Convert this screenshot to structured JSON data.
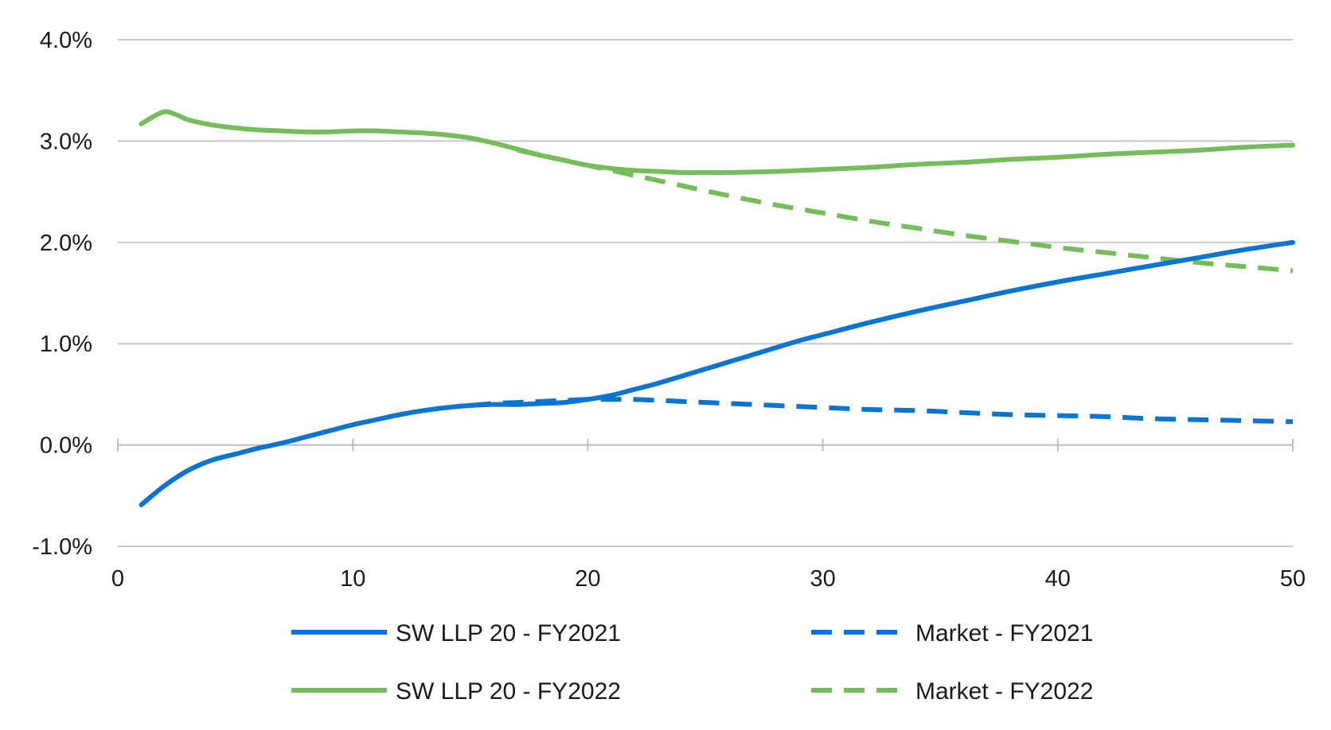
{
  "chart_data": {
    "type": "line",
    "title": "",
    "xlabel": "",
    "ylabel": "",
    "xlim": [
      0,
      50
    ],
    "ylim": [
      -1.0,
      4.0
    ],
    "x_ticks": [
      0,
      10,
      20,
      30,
      40,
      50
    ],
    "x_tick_labels": [
      "0",
      "10",
      "20",
      "30",
      "40",
      "50"
    ],
    "y_ticks": [
      -1.0,
      0.0,
      1.0,
      2.0,
      3.0,
      4.0
    ],
    "y_tick_labels": [
      "-1.0%",
      "0.0%",
      "1.0%",
      "2.0%",
      "3.0%",
      "4.0%"
    ],
    "grid": "horizontal",
    "legend_position": "bottom",
    "colors": {
      "blue": "#0a74d4",
      "green": "#75bd5a",
      "grid": "#c8c8c8",
      "axis": "#bfbfbf"
    },
    "series": [
      {
        "name": "SW LLP 20 - FY2021",
        "color": "#0a74d4",
        "dash": "solid",
        "x": [
          1,
          2,
          3,
          4,
          5,
          6,
          7,
          8,
          9,
          10,
          11,
          12,
          13,
          14,
          15,
          16,
          17,
          18,
          19,
          20,
          21,
          22,
          23,
          24,
          25,
          26,
          27,
          28,
          29,
          30,
          32,
          34,
          36,
          38,
          40,
          42,
          44,
          46,
          48,
          50
        ],
        "y": [
          -0.59,
          -0.4,
          -0.25,
          -0.15,
          -0.09,
          -0.03,
          0.02,
          0.08,
          0.14,
          0.2,
          0.25,
          0.3,
          0.34,
          0.37,
          0.39,
          0.4,
          0.4,
          0.41,
          0.42,
          0.45,
          0.49,
          0.55,
          0.61,
          0.68,
          0.75,
          0.82,
          0.89,
          0.96,
          1.03,
          1.09,
          1.21,
          1.32,
          1.42,
          1.52,
          1.61,
          1.69,
          1.77,
          1.85,
          1.93,
          2.0
        ]
      },
      {
        "name": "Market - FY2021",
        "color": "#0a74d4",
        "dash": "dashed",
        "x": [
          15,
          16,
          17,
          18,
          19,
          20,
          21,
          22,
          24,
          26,
          28,
          30,
          32,
          34,
          36,
          38,
          40,
          42,
          44,
          46,
          48,
          50
        ],
        "y": [
          0.39,
          0.41,
          0.42,
          0.43,
          0.44,
          0.45,
          0.45,
          0.45,
          0.43,
          0.41,
          0.39,
          0.37,
          0.35,
          0.34,
          0.32,
          0.3,
          0.29,
          0.28,
          0.26,
          0.25,
          0.24,
          0.23
        ]
      },
      {
        "name": "SW LLP 20 - FY2022",
        "color": "#75bd5a",
        "dash": "solid",
        "x": [
          1,
          1.5,
          2,
          2.5,
          3,
          4,
          5,
          6,
          7,
          8,
          9,
          10,
          11,
          12,
          13,
          14,
          15,
          16,
          17,
          18,
          19,
          20,
          21,
          22,
          23,
          24,
          25,
          26,
          28,
          30,
          32,
          34,
          36,
          38,
          40,
          42,
          44,
          46,
          48,
          50
        ],
        "y": [
          3.17,
          3.24,
          3.29,
          3.26,
          3.21,
          3.16,
          3.13,
          3.11,
          3.1,
          3.09,
          3.09,
          3.1,
          3.1,
          3.09,
          3.08,
          3.06,
          3.03,
          2.98,
          2.92,
          2.86,
          2.81,
          2.76,
          2.73,
          2.71,
          2.7,
          2.69,
          2.69,
          2.69,
          2.7,
          2.72,
          2.74,
          2.77,
          2.79,
          2.82,
          2.84,
          2.87,
          2.89,
          2.91,
          2.94,
          2.96
        ]
      },
      {
        "name": "Market - FY2022",
        "color": "#75bd5a",
        "dash": "dashed",
        "x": [
          17,
          18,
          19,
          20,
          21,
          22,
          24,
          26,
          28,
          30,
          32,
          34,
          36,
          38,
          40,
          42,
          44,
          46,
          48,
          50
        ],
        "y": [
          2.91,
          2.86,
          2.81,
          2.76,
          2.71,
          2.66,
          2.56,
          2.46,
          2.37,
          2.29,
          2.21,
          2.14,
          2.07,
          2.01,
          1.95,
          1.9,
          1.85,
          1.8,
          1.76,
          1.72
        ]
      }
    ]
  }
}
